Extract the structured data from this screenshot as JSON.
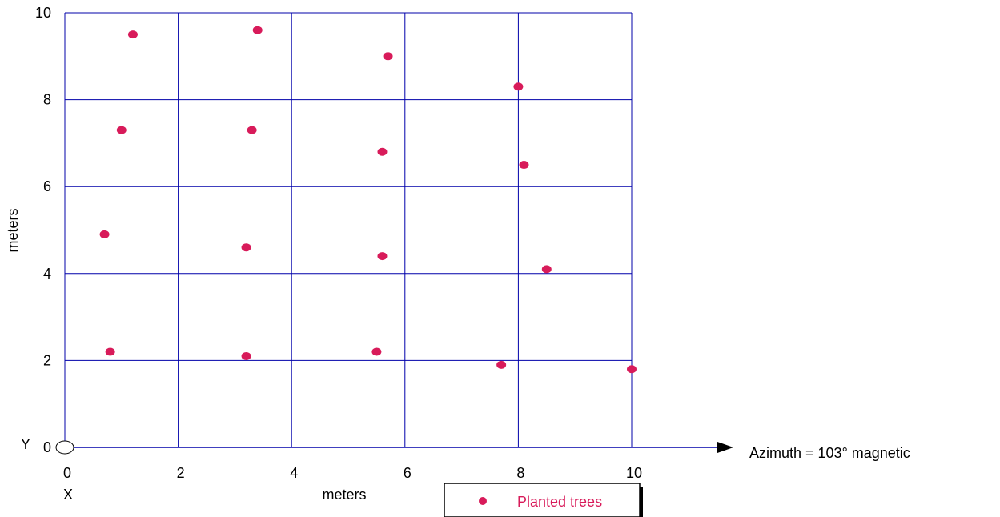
{
  "chart_data": {
    "type": "scatter",
    "xlabel": "meters",
    "ylabel": "meters",
    "xlim": [
      0,
      10
    ],
    "ylim": [
      0,
      10
    ],
    "x_ticks": [
      "0",
      "2",
      "4",
      "6",
      "8",
      "10"
    ],
    "y_ticks": [
      "0",
      "2",
      "4",
      "6",
      "8",
      "10"
    ],
    "grid": true,
    "x_origin_label": "X",
    "y_origin_label": "Y",
    "annotation": "Azimuth = 103° magnetic",
    "legend_position": "bottom-center",
    "colors": {
      "grid": "#0000aa",
      "points": "#d81b5a"
    },
    "series": [
      {
        "name": "Planted trees",
        "color": "#d81b5a",
        "points": [
          {
            "x": 1.2,
            "y": 9.5
          },
          {
            "x": 3.4,
            "y": 9.6
          },
          {
            "x": 5.7,
            "y": 9.0
          },
          {
            "x": 8.0,
            "y": 8.3
          },
          {
            "x": 1.0,
            "y": 7.3
          },
          {
            "x": 3.3,
            "y": 7.3
          },
          {
            "x": 5.6,
            "y": 6.8
          },
          {
            "x": 8.1,
            "y": 6.5
          },
          {
            "x": 0.7,
            "y": 4.9
          },
          {
            "x": 3.2,
            "y": 4.6
          },
          {
            "x": 5.6,
            "y": 4.4
          },
          {
            "x": 8.5,
            "y": 4.1
          },
          {
            "x": 0.8,
            "y": 2.2
          },
          {
            "x": 3.2,
            "y": 2.1
          },
          {
            "x": 5.5,
            "y": 2.2
          },
          {
            "x": 7.7,
            "y": 1.9
          },
          {
            "x": 10.0,
            "y": 1.8
          }
        ]
      }
    ]
  }
}
